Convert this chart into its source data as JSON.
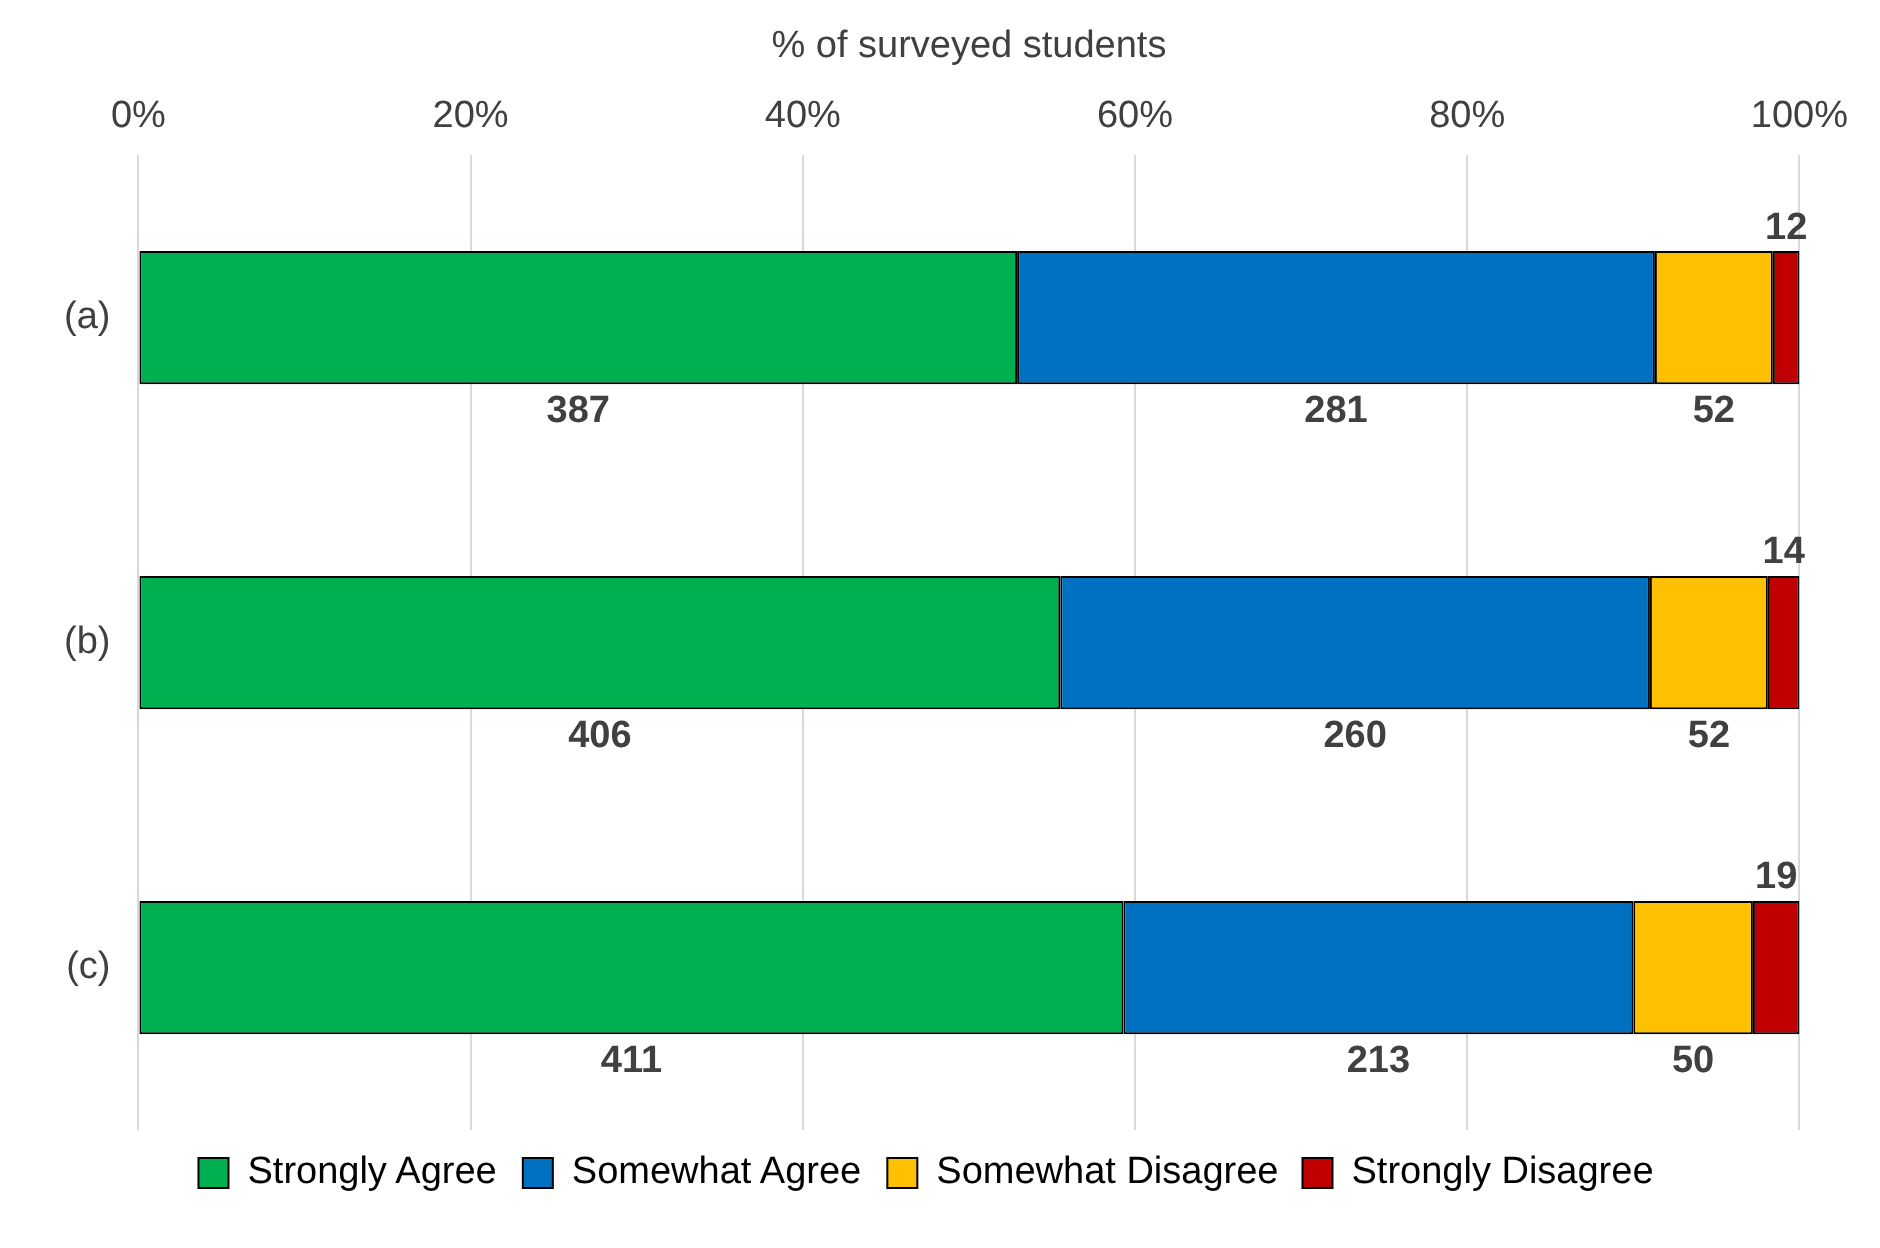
{
  "chart_data": {
    "type": "bar",
    "orientation": "horizontal",
    "stacked": true,
    "xlabel": "% of surveyed students",
    "categories": [
      "(a)",
      "(b)",
      "(c)"
    ],
    "series": [
      {
        "name": "Strongly Agree",
        "color": "#00b050",
        "values": [
          52.9,
          55.5,
          59.3
        ]
      },
      {
        "name": "Somewhat Agree",
        "color": "#0070c0",
        "values": [
          38.4,
          35.5,
          30.7
        ]
      },
      {
        "name": "Somewhat Disagree",
        "color": "#ffc000",
        "values": [
          7.1,
          7.1,
          7.2
        ]
      },
      {
        "name": "Strongly Disagree",
        "color": "#c00000",
        "values": [
          1.6,
          1.9,
          2.8
        ]
      }
    ],
    "annotations": [
      "387",
      "281",
      "52",
      "12",
      "406",
      "260",
      "52",
      "14",
      "411",
      "213",
      "50",
      "19"
    ],
    "xlim": [
      0,
      100
    ],
    "xticks": [
      {
        "value": 0,
        "label": "0%"
      },
      {
        "value": 20,
        "label": "20%"
      },
      {
        "value": 40,
        "label": "40%"
      },
      {
        "value": 60,
        "label": "60%"
      },
      {
        "value": 80,
        "label": "80%"
      },
      {
        "value": 100,
        "label": "100%"
      }
    ],
    "grid": "x",
    "legend": "bottom"
  }
}
